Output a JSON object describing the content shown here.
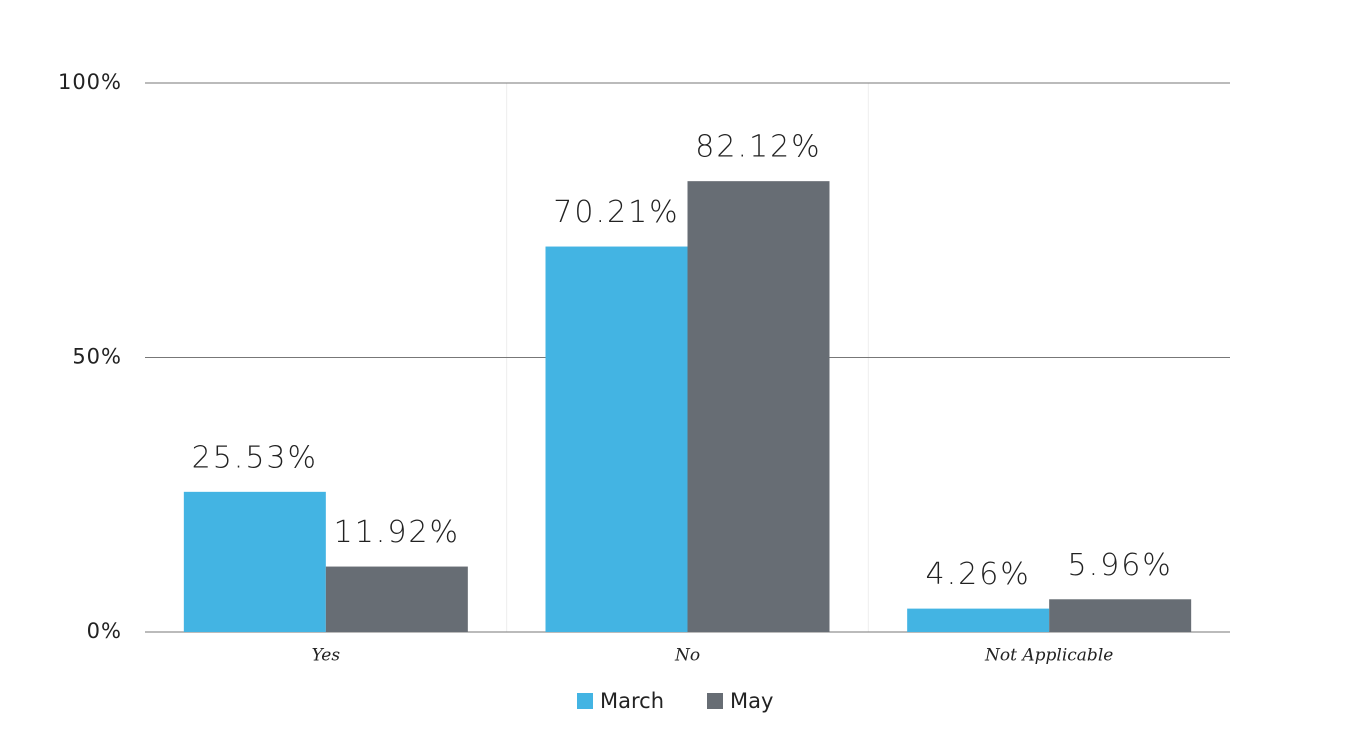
{
  "chart_data": {
    "type": "bar",
    "categories": [
      "Yes",
      "No",
      "Not Applicable"
    ],
    "series": [
      {
        "name": "March",
        "color": "#43b4e3",
        "values": [
          25.53,
          70.21,
          4.26
        ],
        "value_labels": [
          "25.53%",
          "70.21%",
          "4.26%"
        ]
      },
      {
        "name": "May",
        "color": "#676d74",
        "values": [
          11.92,
          82.12,
          5.96
        ],
        "value_labels": [
          "11.92%",
          "82.12%",
          "5.96%"
        ]
      }
    ],
    "ylim": [
      0,
      100
    ],
    "yticks": [
      {
        "value": 0,
        "label": "0%"
      },
      {
        "value": 50,
        "label": "50%"
      },
      {
        "value": 100,
        "label": "100%"
      }
    ],
    "grid": true,
    "legend": "bottom"
  }
}
